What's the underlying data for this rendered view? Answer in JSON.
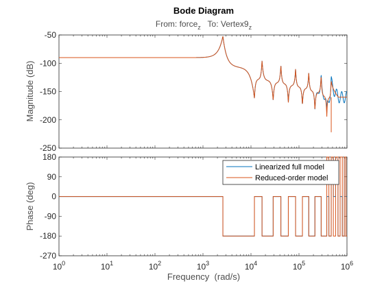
{
  "chart_data": {
    "type": "line",
    "title": "Bode Diagram",
    "subtitle": {
      "from_label": "From: force",
      "from_sub": "z",
      "to_label": "To: Vertex9",
      "to_sub": "z"
    },
    "xlabel": "Frequency  (rad/s)",
    "xscale": "log",
    "xlim": [
      1,
      1000000
    ],
    "xticks": [
      {
        "base": "10",
        "exp": "0"
      },
      {
        "base": "10",
        "exp": "1"
      },
      {
        "base": "10",
        "exp": "2"
      },
      {
        "base": "10",
        "exp": "3"
      },
      {
        "base": "10",
        "exp": "4"
      },
      {
        "base": "10",
        "exp": "5"
      },
      {
        "base": "10",
        "exp": "6"
      }
    ],
    "magnitude": {
      "ylabel": "Magnitude (dB)",
      "ylim": [
        -250,
        -50
      ],
      "yticks": [
        "-50",
        "-100",
        "-150",
        "-200",
        "-250"
      ],
      "dc_gain_db": -90,
      "resonances_rad_s": [
        2600,
        17000,
        42000,
        85000,
        160000,
        290000,
        470000
      ],
      "resonance_peaks_db": [
        -52,
        -95,
        -103,
        -109,
        -115,
        -121,
        -128
      ],
      "antiresonances_rad_s": [
        11800,
        29000,
        60000,
        118000,
        215000,
        380000
      ],
      "antiresonance_dips_db": [
        -162,
        -166,
        -170,
        -175,
        -183,
        -195
      ],
      "high_freq_level_db": -160,
      "deepest_dip": {
        "freq_rad_s": 470000,
        "db": -222
      }
    },
    "phase": {
      "ylabel": "Phase (deg)",
      "ylim": [
        -270,
        180
      ],
      "yticks": [
        "180",
        "90",
        "0",
        "-90",
        "-180",
        "-270"
      ],
      "values_deg": [
        0,
        -180,
        180
      ],
      "jump_freqs_rad_s": [
        2600,
        11800,
        17000,
        29000,
        42000,
        60000,
        85000,
        118000,
        160000,
        215000,
        290000,
        330000,
        380000,
        420000,
        470000,
        520000,
        580000,
        650000,
        720000,
        800000,
        880000,
        950000
      ]
    },
    "series": [
      {
        "name": "Linearized full model",
        "color": "#0072bd"
      },
      {
        "name": "Reduced-order model",
        "color": "#d95319"
      }
    ],
    "legend_position": "top-right of phase axes",
    "grid": false
  }
}
